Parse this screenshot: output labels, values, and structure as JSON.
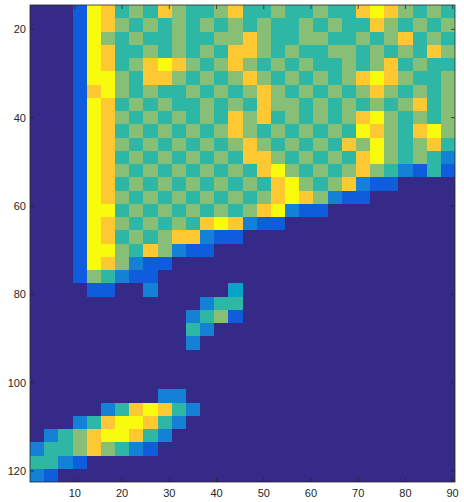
{
  "chart_data": {
    "type": "heatmap",
    "x": [
      2,
      5,
      8,
      11,
      14,
      17,
      20,
      23,
      26,
      29,
      32,
      35,
      38,
      41,
      44,
      47,
      50,
      53,
      56,
      59,
      62,
      65,
      68,
      71,
      74,
      77,
      80,
      83,
      86,
      89
    ],
    "y": [
      16,
      19,
      22,
      25,
      28,
      31,
      34,
      37,
      40,
      43,
      46,
      49,
      52,
      55,
      58,
      61,
      64,
      67,
      70,
      73,
      76,
      79,
      82,
      85,
      88,
      91,
      94,
      97,
      100,
      103,
      106,
      109,
      112,
      115,
      118,
      121
    ],
    "cells": [
      [
        1,
        1,
        1,
        2,
        9,
        8,
        5,
        6,
        5,
        8,
        6,
        5,
        5,
        6,
        8,
        5,
        5,
        6,
        5,
        5,
        6,
        5,
        5,
        8,
        9,
        8,
        6,
        5,
        6,
        5
      ],
      [
        1,
        1,
        1,
        2,
        9,
        8,
        6,
        5,
        6,
        5,
        6,
        5,
        6,
        5,
        6,
        5,
        6,
        5,
        5,
        6,
        5,
        6,
        5,
        5,
        8,
        6,
        5,
        6,
        5,
        6
      ],
      [
        1,
        1,
        1,
        2,
        9,
        6,
        5,
        6,
        5,
        5,
        6,
        5,
        5,
        6,
        6,
        8,
        6,
        5,
        5,
        6,
        6,
        5,
        5,
        6,
        5,
        6,
        8,
        5,
        6,
        5
      ],
      [
        1,
        1,
        1,
        2,
        9,
        8,
        5,
        5,
        6,
        5,
        6,
        5,
        6,
        5,
        8,
        8,
        6,
        5,
        6,
        5,
        5,
        6,
        6,
        5,
        6,
        5,
        6,
        5,
        8,
        6
      ],
      [
        1,
        1,
        1,
        2,
        9,
        8,
        5,
        6,
        8,
        9,
        8,
        6,
        5,
        6,
        8,
        6,
        5,
        6,
        5,
        6,
        5,
        5,
        6,
        5,
        6,
        8,
        5,
        6,
        5,
        5
      ],
      [
        1,
        1,
        1,
        2,
        9,
        9,
        6,
        5,
        8,
        8,
        6,
        5,
        6,
        5,
        6,
        8,
        6,
        5,
        6,
        5,
        6,
        5,
        6,
        8,
        9,
        8,
        6,
        5,
        5,
        6
      ],
      [
        1,
        1,
        1,
        2,
        8,
        9,
        6,
        5,
        6,
        5,
        5,
        6,
        5,
        6,
        5,
        6,
        8,
        6,
        5,
        6,
        5,
        6,
        5,
        6,
        8,
        6,
        5,
        6,
        5,
        6
      ],
      [
        1,
        1,
        1,
        2,
        9,
        8,
        5,
        6,
        5,
        6,
        5,
        5,
        6,
        5,
        6,
        5,
        8,
        6,
        6,
        5,
        6,
        5,
        6,
        5,
        6,
        5,
        6,
        8,
        5,
        6
      ],
      [
        1,
        1,
        1,
        2,
        9,
        8,
        6,
        5,
        6,
        5,
        6,
        5,
        6,
        5,
        8,
        6,
        8,
        5,
        6,
        5,
        6,
        5,
        6,
        8,
        9,
        6,
        5,
        6,
        5,
        6
      ],
      [
        1,
        1,
        1,
        2,
        9,
        8,
        5,
        6,
        5,
        6,
        5,
        6,
        5,
        6,
        8,
        6,
        5,
        6,
        5,
        6,
        5,
        6,
        5,
        9,
        8,
        6,
        5,
        8,
        9,
        6
      ],
      [
        1,
        1,
        1,
        2,
        9,
        8,
        6,
        5,
        6,
        5,
        6,
        5,
        6,
        5,
        6,
        8,
        6,
        5,
        6,
        5,
        6,
        5,
        8,
        6,
        9,
        6,
        5,
        6,
        8,
        5
      ],
      [
        1,
        1,
        1,
        2,
        9,
        8,
        5,
        6,
        5,
        6,
        5,
        6,
        5,
        6,
        5,
        8,
        8,
        6,
        5,
        6,
        5,
        6,
        5,
        8,
        9,
        6,
        5,
        6,
        5,
        3
      ],
      [
        1,
        1,
        1,
        2,
        9,
        8,
        6,
        5,
        6,
        5,
        6,
        5,
        6,
        5,
        6,
        5,
        8,
        9,
        6,
        5,
        6,
        5,
        6,
        8,
        6,
        5,
        3,
        2,
        5,
        2
      ],
      [
        1,
        1,
        1,
        2,
        9,
        8,
        5,
        6,
        5,
        6,
        5,
        6,
        5,
        6,
        5,
        6,
        5,
        8,
        9,
        6,
        5,
        6,
        8,
        3,
        2,
        2,
        1,
        1,
        1,
        1
      ],
      [
        1,
        1,
        1,
        2,
        9,
        8,
        6,
        5,
        6,
        5,
        6,
        5,
        6,
        5,
        6,
        5,
        6,
        8,
        9,
        8,
        6,
        3,
        2,
        2,
        1,
        1,
        1,
        1,
        1,
        1
      ],
      [
        1,
        1,
        1,
        2,
        9,
        9,
        5,
        6,
        5,
        6,
        5,
        6,
        5,
        6,
        5,
        6,
        8,
        9,
        3,
        2,
        2,
        1,
        1,
        1,
        1,
        1,
        1,
        1,
        1,
        1
      ],
      [
        1,
        1,
        1,
        2,
        9,
        8,
        6,
        5,
        6,
        5,
        6,
        5,
        8,
        9,
        8,
        3,
        2,
        2,
        1,
        1,
        1,
        1,
        1,
        1,
        1,
        1,
        1,
        1,
        1,
        1
      ],
      [
        1,
        1,
        1,
        2,
        9,
        8,
        5,
        6,
        5,
        6,
        8,
        8,
        3,
        2,
        2,
        1,
        1,
        1,
        1,
        1,
        1,
        1,
        1,
        1,
        1,
        1,
        1,
        1,
        1,
        1
      ],
      [
        1,
        1,
        1,
        2,
        9,
        9,
        6,
        5,
        8,
        6,
        3,
        2,
        2,
        1,
        1,
        1,
        1,
        1,
        1,
        1,
        1,
        1,
        1,
        1,
        1,
        1,
        1,
        1,
        1,
        1
      ],
      [
        1,
        1,
        1,
        2,
        9,
        8,
        6,
        3,
        2,
        2,
        1,
        1,
        1,
        1,
        1,
        1,
        1,
        1,
        1,
        1,
        1,
        1,
        1,
        1,
        1,
        1,
        1,
        1,
        1,
        1
      ],
      [
        1,
        1,
        1,
        2,
        6,
        5,
        3,
        2,
        2,
        1,
        1,
        1,
        1,
        1,
        1,
        1,
        1,
        1,
        1,
        1,
        1,
        1,
        1,
        1,
        1,
        1,
        1,
        1,
        1,
        1
      ],
      [
        1,
        1,
        1,
        1,
        2,
        2,
        1,
        1,
        3,
        1,
        1,
        1,
        1,
        1,
        4,
        1,
        1,
        1,
        1,
        1,
        1,
        1,
        1,
        1,
        1,
        1,
        1,
        1,
        1,
        1
      ],
      [
        1,
        1,
        1,
        1,
        1,
        1,
        1,
        1,
        1,
        1,
        1,
        1,
        3,
        5,
        5,
        1,
        1,
        1,
        1,
        1,
        1,
        1,
        1,
        1,
        1,
        1,
        1,
        1,
        1,
        1
      ],
      [
        1,
        1,
        1,
        1,
        1,
        1,
        1,
        1,
        1,
        1,
        1,
        3,
        5,
        6,
        2,
        1,
        1,
        1,
        1,
        1,
        1,
        1,
        1,
        1,
        1,
        1,
        1,
        1,
        1,
        1
      ],
      [
        1,
        1,
        1,
        1,
        1,
        1,
        1,
        1,
        1,
        1,
        1,
        5,
        3,
        1,
        1,
        1,
        1,
        1,
        1,
        1,
        1,
        1,
        1,
        1,
        1,
        1,
        1,
        1,
        1,
        1
      ],
      [
        1,
        1,
        1,
        1,
        1,
        1,
        1,
        1,
        1,
        1,
        1,
        3,
        1,
        1,
        1,
        1,
        1,
        1,
        1,
        1,
        1,
        1,
        1,
        1,
        1,
        1,
        1,
        1,
        1,
        1
      ],
      [
        1,
        1,
        1,
        1,
        1,
        1,
        1,
        1,
        1,
        1,
        1,
        1,
        1,
        1,
        1,
        1,
        1,
        1,
        1,
        1,
        1,
        1,
        1,
        1,
        1,
        1,
        1,
        1,
        1,
        1
      ],
      [
        1,
        1,
        1,
        1,
        1,
        1,
        1,
        1,
        1,
        1,
        1,
        1,
        1,
        1,
        1,
        1,
        1,
        1,
        1,
        1,
        1,
        1,
        1,
        1,
        1,
        1,
        1,
        1,
        1,
        1
      ],
      [
        1,
        1,
        1,
        1,
        1,
        1,
        1,
        1,
        1,
        1,
        1,
        1,
        1,
        1,
        1,
        1,
        1,
        1,
        1,
        1,
        1,
        1,
        1,
        1,
        1,
        1,
        1,
        1,
        1,
        1
      ],
      [
        1,
        1,
        1,
        1,
        1,
        1,
        1,
        1,
        1,
        3,
        3,
        1,
        1,
        1,
        1,
        1,
        1,
        1,
        1,
        1,
        1,
        1,
        1,
        1,
        1,
        1,
        1,
        1,
        1,
        1
      ],
      [
        1,
        1,
        1,
        1,
        1,
        3,
        5,
        8,
        9,
        8,
        5,
        3,
        1,
        1,
        1,
        1,
        1,
        1,
        1,
        1,
        1,
        1,
        1,
        1,
        1,
        1,
        1,
        1,
        1,
        1
      ],
      [
        1,
        1,
        1,
        3,
        5,
        8,
        9,
        9,
        8,
        5,
        3,
        1,
        1,
        1,
        1,
        1,
        1,
        1,
        1,
        1,
        1,
        1,
        1,
        1,
        1,
        1,
        1,
        1,
        1,
        1
      ],
      [
        1,
        3,
        5,
        6,
        8,
        9,
        9,
        8,
        5,
        3,
        1,
        1,
        1,
        1,
        1,
        1,
        1,
        1,
        1,
        1,
        1,
        1,
        1,
        1,
        1,
        1,
        1,
        1,
        1,
        1
      ],
      [
        3,
        5,
        5,
        6,
        8,
        6,
        5,
        3,
        2,
        1,
        1,
        1,
        1,
        1,
        1,
        1,
        1,
        1,
        1,
        1,
        1,
        1,
        1,
        1,
        1,
        1,
        1,
        1,
        1,
        1
      ],
      [
        5,
        5,
        3,
        2,
        1,
        1,
        1,
        1,
        1,
        1,
        1,
        1,
        1,
        1,
        1,
        1,
        1,
        1,
        1,
        1,
        1,
        1,
        1,
        1,
        1,
        1,
        1,
        1,
        1,
        1
      ],
      [
        3,
        2,
        1,
        1,
        1,
        1,
        1,
        1,
        1,
        1,
        1,
        1,
        1,
        1,
        1,
        1,
        1,
        1,
        1,
        1,
        1,
        1,
        1,
        1,
        1,
        1,
        1,
        1,
        1,
        1
      ]
    ],
    "zlim": [
      1,
      9
    ],
    "xlim": [
      0.5,
      90.5
    ],
    "ylim": [
      14.5,
      122.5
    ],
    "xticks": [
      10,
      20,
      30,
      40,
      50,
      60,
      70,
      80,
      90
    ],
    "yticks": [
      20,
      40,
      60,
      80,
      100,
      120
    ]
  }
}
